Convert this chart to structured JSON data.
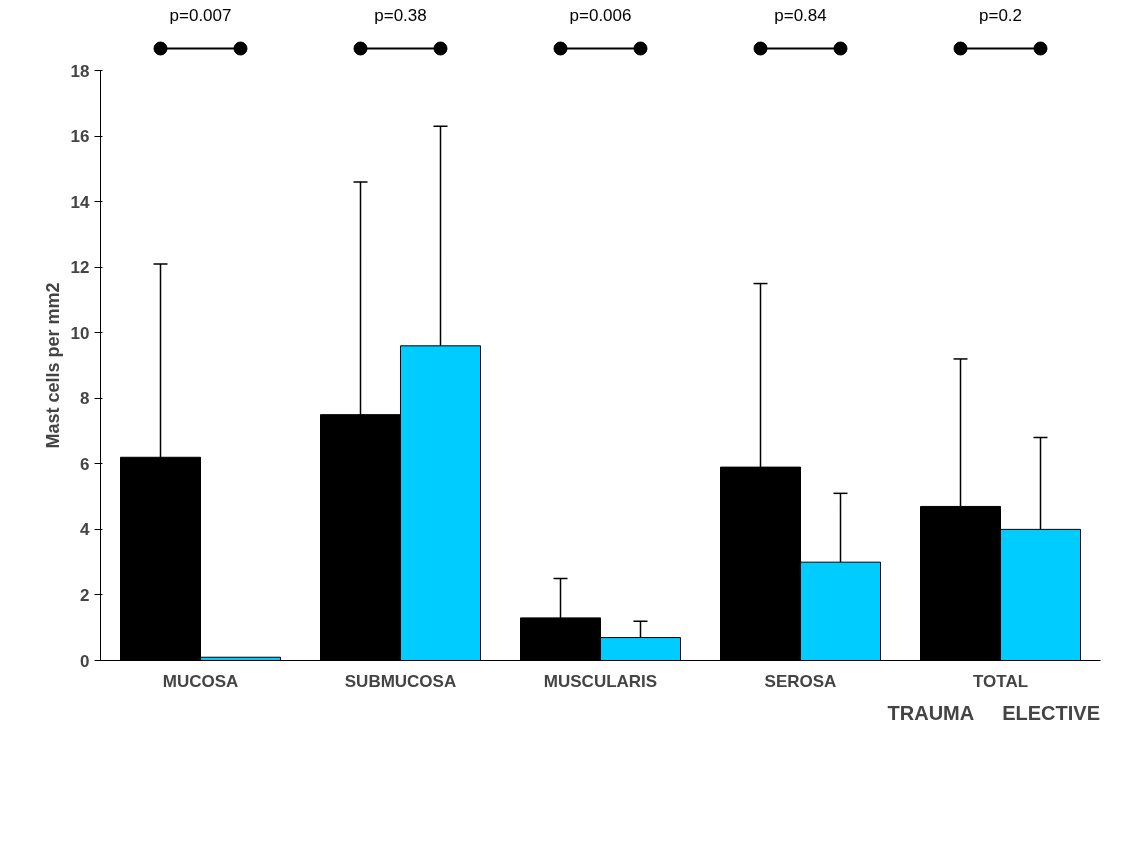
{
  "chart_data": {
    "type": "bar",
    "ylabel": "Mast cells per mm2",
    "categories": [
      "MUCOSA",
      "SUBMUCOSA",
      "MUSCULARIS",
      "SEROSA",
      "TOTAL"
    ],
    "series": [
      {
        "name": "TRAUMA",
        "color": "#000000",
        "values": [
          6.2,
          7.5,
          1.3,
          5.9,
          4.7
        ],
        "errors": [
          [
            6.2,
            12.1
          ],
          [
            7.5,
            14.6
          ],
          [
            1.3,
            2.5
          ],
          [
            5.9,
            11.5
          ],
          [
            4.7,
            9.2
          ]
        ]
      },
      {
        "name": "ELECTIVE",
        "color": "#00ccff",
        "values": [
          0.1,
          9.6,
          0.7,
          3.0,
          4.0
        ],
        "errors": [
          null,
          [
            9.6,
            16.3
          ],
          [
            0.7,
            1.2
          ],
          [
            3.0,
            5.1
          ],
          [
            4.0,
            6.8
          ]
        ]
      }
    ],
    "ylim": [
      0,
      18
    ],
    "yticks": [
      0,
      2,
      4,
      6,
      8,
      10,
      12,
      14,
      16,
      18
    ],
    "grid": false,
    "legend": "bottom right",
    "annotations": [
      "p=0.007",
      "p=0.38",
      "p=0.006",
      "p=0.84",
      "p=0.2"
    ]
  }
}
